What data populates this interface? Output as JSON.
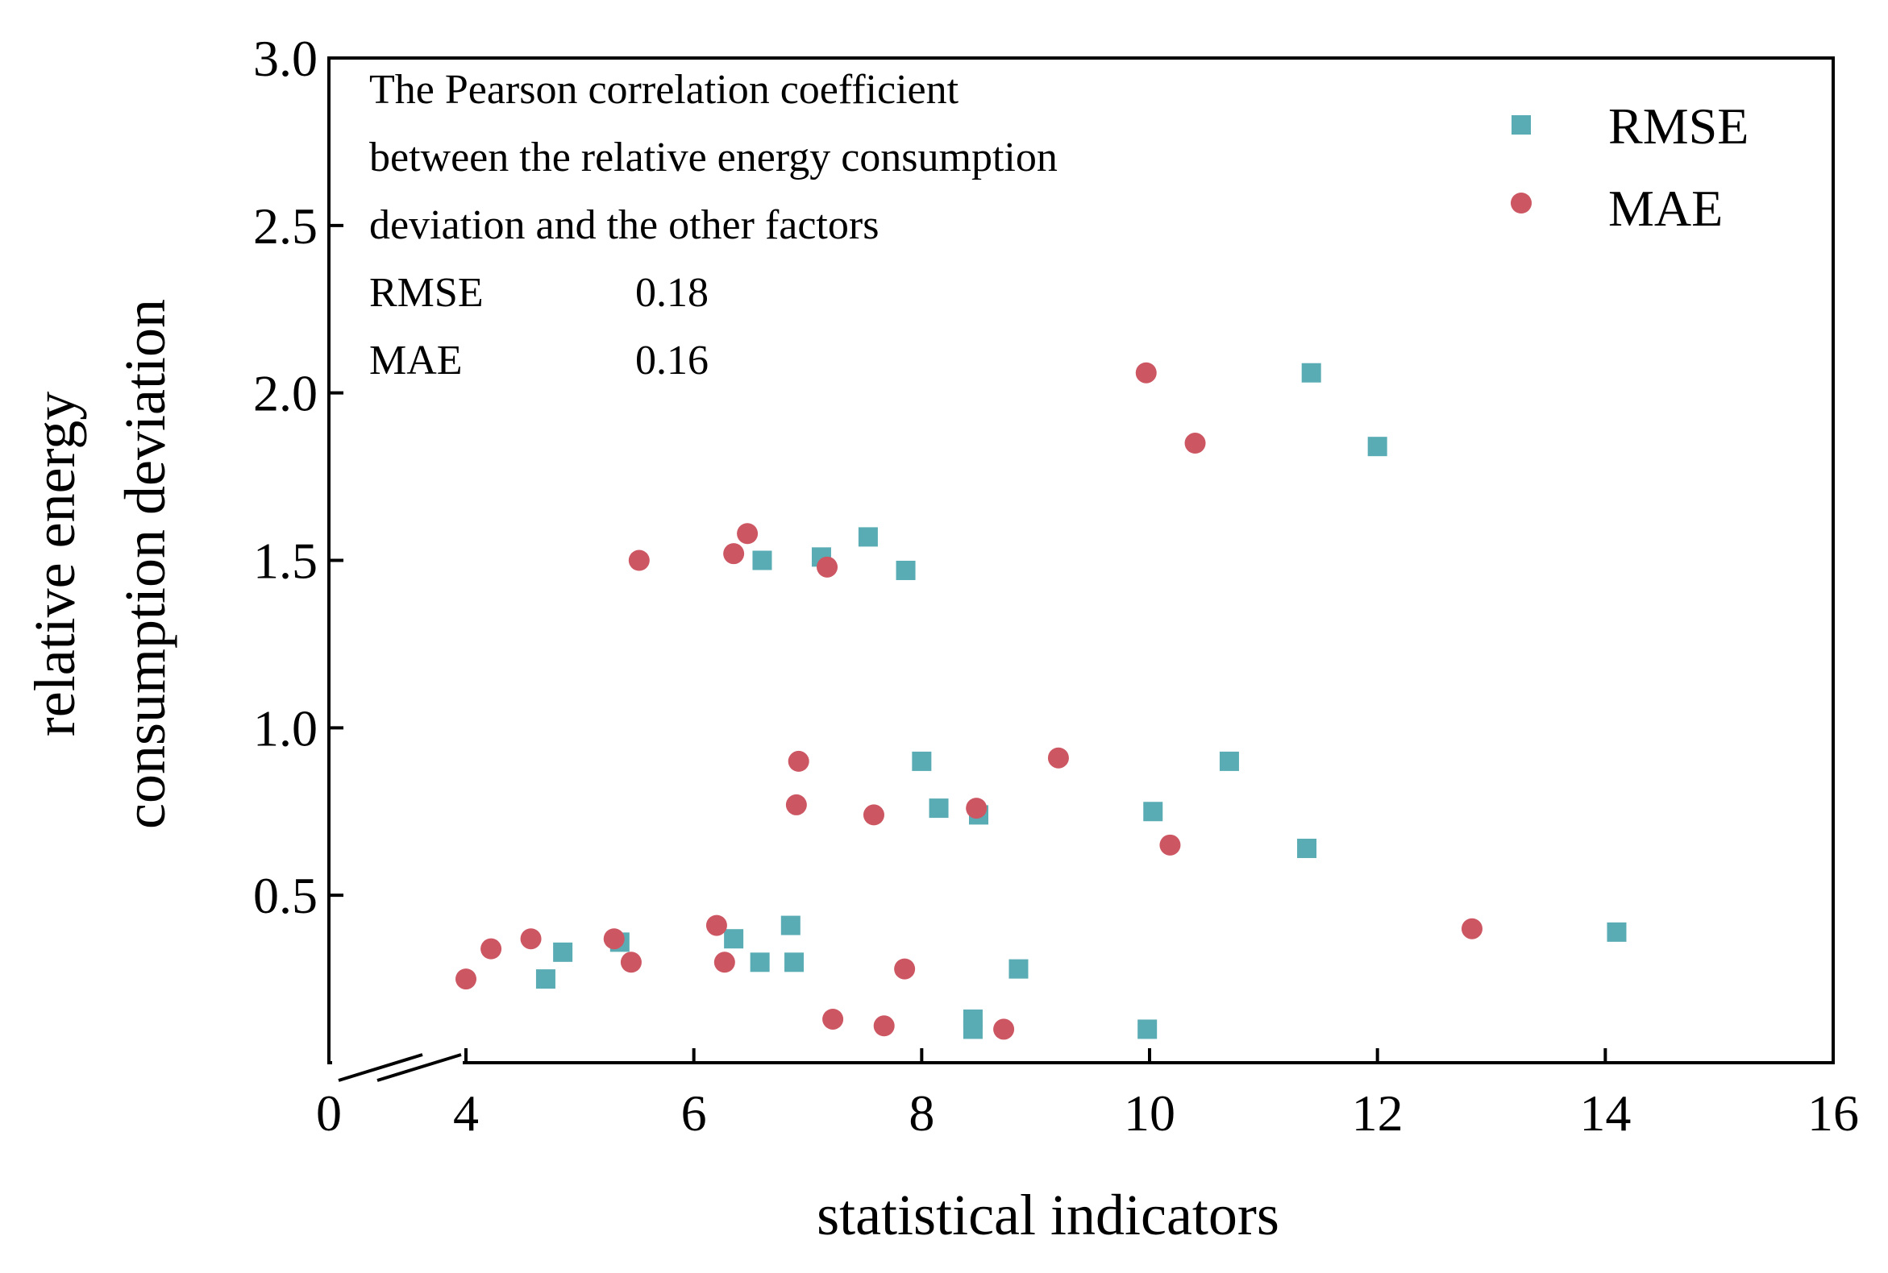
{
  "chart_data": {
    "type": "scatter",
    "title": "",
    "xlabel": "statistical indicators",
    "ylabel_lines": [
      "relative energy",
      "consumption deviation"
    ],
    "xlim": [
      0,
      16
    ],
    "ylim": [
      0,
      3.0
    ],
    "x_axis_break": [
      0,
      4
    ],
    "xticks": [
      0,
      4,
      6,
      8,
      10,
      12,
      14,
      16
    ],
    "xtick_labels": [
      "0",
      "4",
      "6",
      "8",
      "10",
      "12",
      "14",
      "16"
    ],
    "yticks": [
      0.5,
      1.0,
      1.5,
      2.0,
      2.5,
      3.0
    ],
    "ytick_labels": [
      "0.5",
      "1.0",
      "1.5",
      "2.0",
      "2.5",
      "3.0"
    ],
    "grid": false,
    "legend_position": "top-right",
    "colors": {
      "RMSE": "#5aacb4",
      "MAE": "#cc5662",
      "annotation": "#ff0000"
    },
    "series": [
      {
        "name": "RMSE",
        "marker": "square",
        "points": [
          [
            11.42,
            2.06
          ],
          [
            12.0,
            1.84
          ],
          [
            7.53,
            1.57
          ],
          [
            6.6,
            1.5
          ],
          [
            7.12,
            1.51
          ],
          [
            7.86,
            1.47
          ],
          [
            8.0,
            0.9
          ],
          [
            10.7,
            0.9
          ],
          [
            8.15,
            0.76
          ],
          [
            8.5,
            0.74
          ],
          [
            10.03,
            0.75
          ],
          [
            11.38,
            0.64
          ],
          [
            14.1,
            0.39
          ],
          [
            6.85,
            0.41
          ],
          [
            4.85,
            0.33
          ],
          [
            5.35,
            0.36
          ],
          [
            6.35,
            0.37
          ],
          [
            4.7,
            0.25
          ],
          [
            6.58,
            0.3
          ],
          [
            6.88,
            0.3
          ],
          [
            8.85,
            0.28
          ],
          [
            8.45,
            0.13
          ],
          [
            8.45,
            0.1
          ],
          [
            9.98,
            0.1
          ]
        ]
      },
      {
        "name": "MAE",
        "marker": "circle",
        "points": [
          [
            9.97,
            2.06
          ],
          [
            10.4,
            1.85
          ],
          [
            6.47,
            1.58
          ],
          [
            6.35,
            1.52
          ],
          [
            5.52,
            1.5
          ],
          [
            7.17,
            1.48
          ],
          [
            6.92,
            0.9
          ],
          [
            9.2,
            0.91
          ],
          [
            6.9,
            0.77
          ],
          [
            7.58,
            0.74
          ],
          [
            8.48,
            0.76
          ],
          [
            10.18,
            0.65
          ],
          [
            12.83,
            0.4
          ],
          [
            6.2,
            0.41
          ],
          [
            4.57,
            0.37
          ],
          [
            5.3,
            0.37
          ],
          [
            4.22,
            0.34
          ],
          [
            4.0,
            0.25
          ],
          [
            5.45,
            0.3
          ],
          [
            6.27,
            0.3
          ],
          [
            7.85,
            0.28
          ],
          [
            7.22,
            0.13
          ],
          [
            7.67,
            0.11
          ],
          [
            8.72,
            0.1
          ]
        ]
      }
    ],
    "annotation": {
      "lines": [
        "The Pearson correlation coefficient",
        "between the relative energy consumption",
        "deviation and the other factors"
      ],
      "rows": [
        {
          "label": "RMSE",
          "value": "0.18"
        },
        {
          "label": "MAE",
          "value": "0.16"
        }
      ]
    }
  }
}
